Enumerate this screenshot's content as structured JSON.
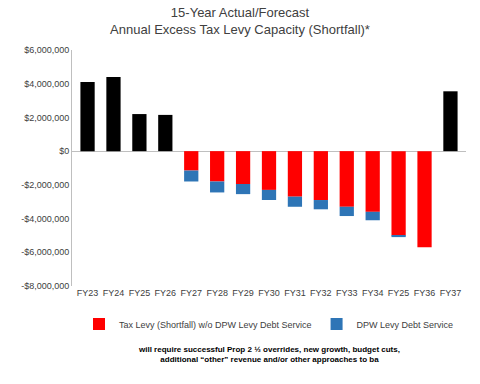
{
  "chart_data": {
    "type": "bar",
    "title": [
      "15-Year Actual/Forecast",
      "Annual Excess Tax Levy Capacity (Shortfall)*"
    ],
    "categories": [
      "FY23",
      "FY24",
      "FY25",
      "FY26",
      "FY27",
      "FY28",
      "FY29",
      "FY30",
      "FY31",
      "FY32",
      "FY33",
      "FY34",
      "FY25",
      "FY36",
      "FY37"
    ],
    "series": [
      {
        "color": "#000000",
        "values": [
          4100000,
          4400000,
          2200000,
          2150000,
          null,
          null,
          null,
          null,
          null,
          null,
          null,
          null,
          null,
          null,
          3550000
        ]
      },
      {
        "name": "Tax Levy (Shortfall) w/o DPW Levy Debt Service",
        "color": "#ff0000",
        "values": [
          null,
          null,
          null,
          null,
          -1150000,
          -1800000,
          -1950000,
          -2300000,
          -2700000,
          -2900000,
          -3300000,
          -3600000,
          -5000000,
          -5700000,
          null
        ]
      },
      {
        "name": "DPW Levy Debt Service",
        "color": "#2e75b6",
        "values": [
          null,
          null,
          null,
          null,
          -650000,
          -650000,
          -600000,
          -600000,
          -600000,
          -550000,
          -550000,
          -500000,
          -100000,
          0,
          null
        ]
      }
    ],
    "stacked": true,
    "ylim": [
      -8000000,
      6000000
    ],
    "yticks": [
      {
        "value": -8000000,
        "label": "-$8,000,000"
      },
      {
        "value": -6000000,
        "label": "-$6,000,000"
      },
      {
        "value": -4000000,
        "label": "-$4,000,000"
      },
      {
        "value": -2000000,
        "label": "-$2,000,000"
      },
      {
        "value": 0,
        "label": "$0"
      },
      {
        "value": 2000000,
        "label": "$2,000,000"
      },
      {
        "value": 4000000,
        "label": "$4,000,000"
      },
      {
        "value": 6000000,
        "label": "$6,000,000"
      }
    ],
    "grid": false,
    "legend": "bottom",
    "annotations": [
      "will require successful Prop 2 ½ overrides, new growth, budget cuts,",
      "additional “other” revenue and/or other approaches to ba"
    ]
  }
}
